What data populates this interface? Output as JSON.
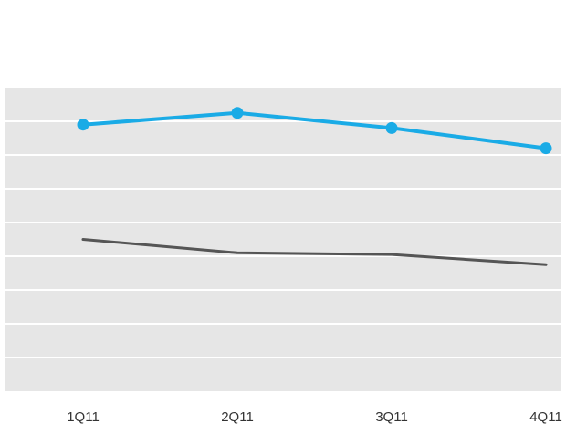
{
  "chart_data": {
    "type": "line",
    "categories": [
      "1Q11",
      "2Q11",
      "3Q11",
      "4Q11"
    ],
    "series": [
      {
        "color": "#1aabe6",
        "values": [
          7.9,
          8.25,
          7.8,
          7.2
        ],
        "markers": true
      },
      {
        "color": "#555555",
        "values": [
          4.5,
          4.1,
          4.05,
          3.75
        ],
        "markers": false
      }
    ],
    "ylim": [
      0,
      9
    ],
    "grid": true,
    "legend": "none"
  }
}
